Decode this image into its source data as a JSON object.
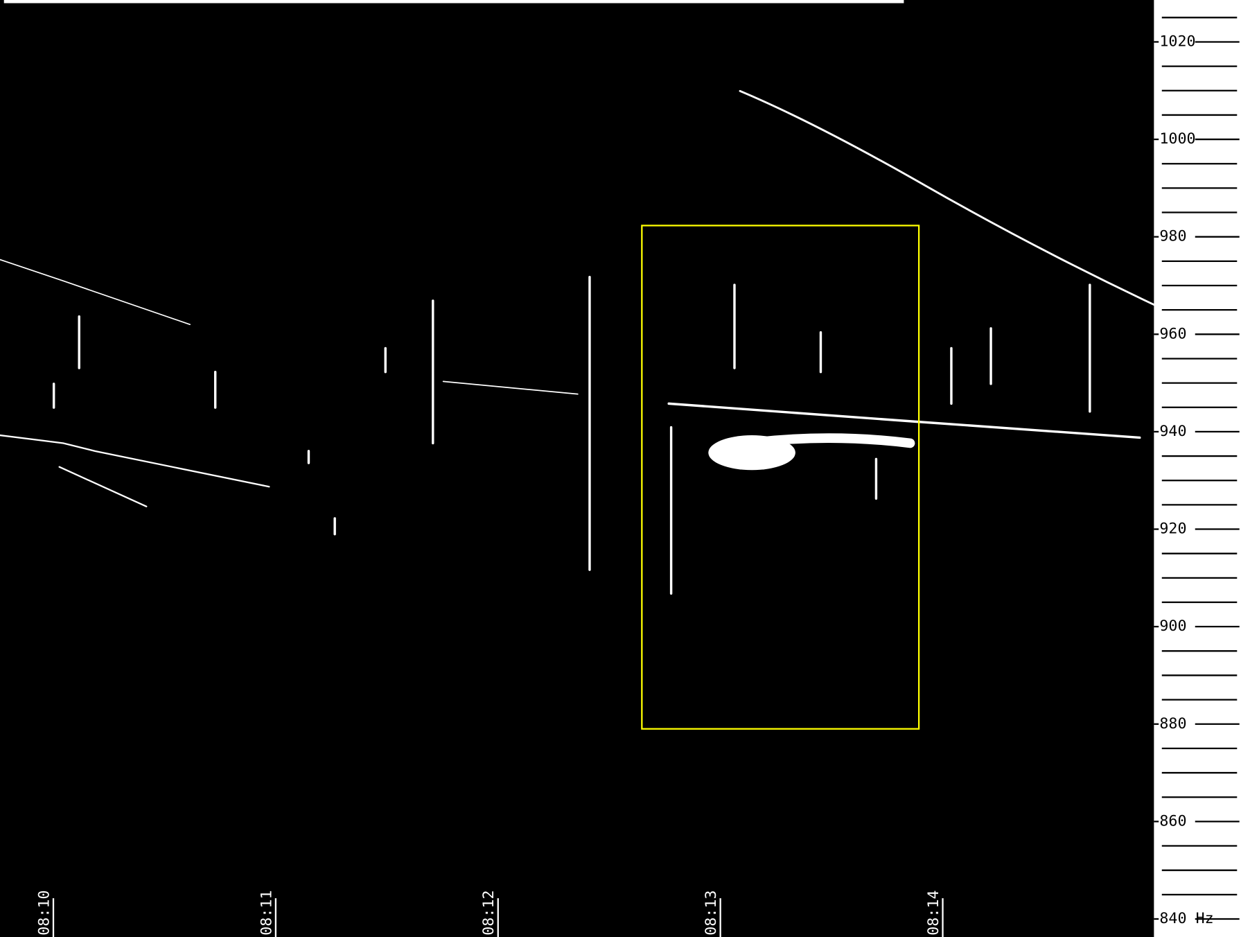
{
  "chart_data": {
    "type": "spectrogram",
    "xlim": [
      489.76,
      494.95
    ],
    "xticks": [
      {
        "value": 490,
        "label": "08:10"
      },
      {
        "value": 491,
        "label": "08:11"
      },
      {
        "value": 492,
        "label": "08:12"
      },
      {
        "value": 493,
        "label": "08:13"
      },
      {
        "value": 494,
        "label": "08:14"
      }
    ],
    "ylim": [
      836.3,
      1028.6
    ],
    "yticks": [
      {
        "value": 840,
        "label": "840 Hz"
      },
      860,
      880,
      900,
      920,
      940,
      960,
      980,
      1000,
      1020
    ],
    "yminorticks": [
      845,
      850,
      855,
      865,
      870,
      875,
      885,
      890,
      895,
      905,
      910,
      915,
      925,
      930,
      935,
      945,
      950,
      955,
      965,
      970,
      975,
      985,
      990,
      995,
      1005,
      1010,
      1015,
      1025
    ]
  }
}
